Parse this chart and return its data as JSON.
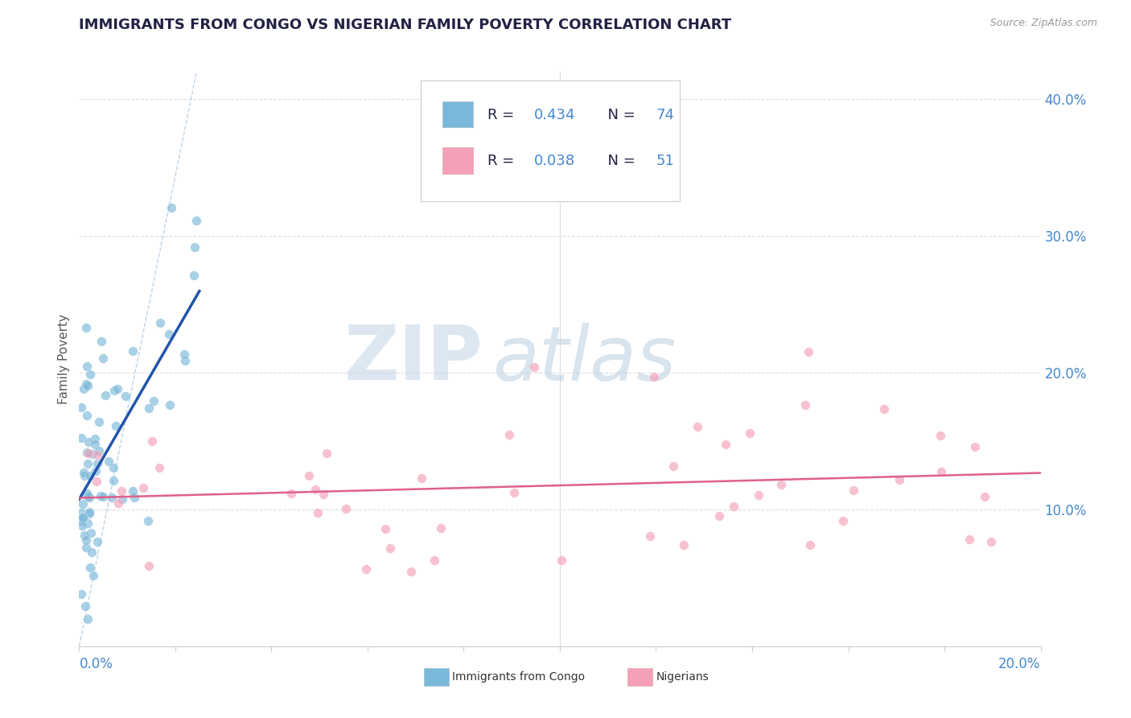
{
  "title": "IMMIGRANTS FROM CONGO VS NIGERIAN FAMILY POVERTY CORRELATION CHART",
  "source": "Source: ZipAtlas.com",
  "ylabel": "Family Poverty",
  "legend_congo": "Immigrants from Congo",
  "legend_nigeria": "Nigerians",
  "r_congo": 0.434,
  "n_congo": 74,
  "r_nigeria": 0.038,
  "n_nigeria": 51,
  "color_congo": "#7ab8d9",
  "color_nigeria": "#f4a0b8",
  "color_trend_congo": "#2255aa",
  "color_trend_nigeria": "#e0608a",
  "color_diag": "#b0c8dd",
  "xlim": [
    0.0,
    0.2
  ],
  "ylim": [
    0.0,
    0.42
  ],
  "watermark_zip": "ZIP",
  "watermark_atlas": "atlas",
  "bg_color": "#ffffff",
  "grid_color": "#dddddd",
  "axis_color": "#4488cc",
  "text_color_dark": "#222244",
  "source_color": "#999999"
}
